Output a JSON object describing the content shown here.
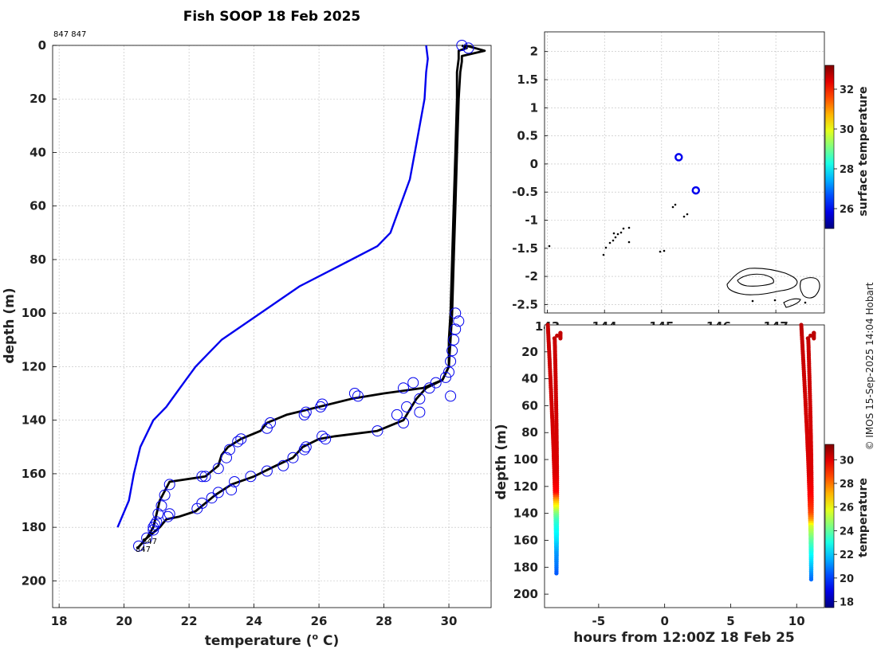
{
  "chart_data": [
    {
      "type": "line",
      "title": "Fish SOOP 18 Feb 2025",
      "corner_label": "847 847",
      "xlabel": "temperature (",
      "xlabel_sup": "o",
      "xlabel_unit": " C)",
      "ylabel": "depth (m)",
      "xlim": [
        17.8,
        31.3
      ],
      "ylim": [
        0,
        210
      ],
      "y_reversed": true,
      "grid": true,
      "x_ticks": [
        18,
        20,
        22,
        24,
        26,
        28,
        30
      ],
      "y_ticks": [
        0,
        20,
        40,
        60,
        80,
        100,
        120,
        140,
        160,
        180,
        200
      ],
      "colors": {
        "climatology": "#0000ee",
        "profiles": "#000000",
        "markers": "#0000ee"
      },
      "series": [
        {
          "style": "blue-line",
          "points": [
            [
              29.3,
              0
            ],
            [
              29.35,
              5
            ],
            [
              29.3,
              10
            ],
            [
              29.25,
              20
            ],
            [
              29.1,
              30
            ],
            [
              28.95,
              40
            ],
            [
              28.8,
              50
            ],
            [
              28.5,
              60
            ],
            [
              28.2,
              70
            ],
            [
              27.8,
              75
            ],
            [
              27.0,
              80
            ],
            [
              26.2,
              85
            ],
            [
              25.4,
              90
            ],
            [
              24.8,
              95
            ],
            [
              24.2,
              100
            ],
            [
              23.6,
              105
            ],
            [
              23.0,
              110
            ],
            [
              22.6,
              115
            ],
            [
              22.2,
              120
            ],
            [
              21.9,
              125
            ],
            [
              21.6,
              130
            ],
            [
              21.3,
              135
            ],
            [
              20.9,
              140
            ],
            [
              20.5,
              150
            ],
            [
              20.3,
              160
            ],
            [
              20.15,
              170
            ],
            [
              19.8,
              180
            ]
          ]
        },
        {
          "style": "black-line",
          "label": "847",
          "points": [
            [
              30.4,
              0
            ],
            [
              30.55,
              1
            ],
            [
              30.3,
              2
            ],
            [
              30.3,
              5
            ],
            [
              30.25,
              10
            ],
            [
              30.25,
              20
            ],
            [
              30.2,
              40
            ],
            [
              30.15,
              60
            ],
            [
              30.1,
              80
            ],
            [
              30.05,
              100
            ],
            [
              30.0,
              110
            ],
            [
              30.0,
              120
            ],
            [
              29.8,
              125
            ],
            [
              29.2,
              128
            ],
            [
              28.0,
              130
            ],
            [
              27.0,
              132
            ],
            [
              26.0,
              135
            ],
            [
              25.0,
              138
            ],
            [
              24.4,
              141
            ],
            [
              24.2,
              144
            ],
            [
              23.6,
              147
            ],
            [
              23.2,
              150
            ],
            [
              23.0,
              153
            ],
            [
              22.9,
              157
            ],
            [
              22.5,
              161
            ],
            [
              21.4,
              163
            ],
            [
              21.1,
              170
            ],
            [
              21.0,
              175
            ],
            [
              20.9,
              180
            ],
            [
              20.7,
              184
            ],
            [
              20.4,
              188
            ]
          ]
        },
        {
          "style": "black-line",
          "label": "847",
          "points": [
            [
              30.5,
              0
            ],
            [
              31.1,
              2
            ],
            [
              30.4,
              4
            ],
            [
              30.4,
              6
            ],
            [
              30.35,
              10
            ],
            [
              30.3,
              20
            ],
            [
              30.25,
              40
            ],
            [
              30.2,
              60
            ],
            [
              30.15,
              80
            ],
            [
              30.1,
              100
            ],
            [
              30.05,
              110
            ],
            [
              30.0,
              120
            ],
            [
              29.8,
              125
            ],
            [
              29.3,
              128
            ],
            [
              29.0,
              132
            ],
            [
              28.8,
              136
            ],
            [
              28.6,
              140
            ],
            [
              27.8,
              144
            ],
            [
              26.5,
              146
            ],
            [
              26.0,
              147
            ],
            [
              25.5,
              150
            ],
            [
              25.2,
              154
            ],
            [
              24.5,
              158
            ],
            [
              24.0,
              161
            ],
            [
              23.3,
              164
            ],
            [
              22.8,
              168
            ],
            [
              22.5,
              171
            ],
            [
              22.2,
              174
            ],
            [
              21.7,
              176
            ],
            [
              21.3,
              177
            ],
            [
              21.1,
              180
            ],
            [
              20.9,
              182
            ],
            [
              20.6,
              185
            ]
          ]
        }
      ],
      "markers": [
        [
          30.4,
          0
        ],
        [
          30.6,
          1
        ],
        [
          30.2,
          100
        ],
        [
          30.3,
          103
        ],
        [
          30.2,
          106
        ],
        [
          30.15,
          110
        ],
        [
          30.1,
          114
        ],
        [
          30.05,
          118
        ],
        [
          30.0,
          122
        ],
        [
          29.9,
          124
        ],
        [
          28.9,
          126
        ],
        [
          28.6,
          128
        ],
        [
          29.6,
          126
        ],
        [
          29.4,
          128
        ],
        [
          29.1,
          132
        ],
        [
          28.7,
          135
        ],
        [
          28.4,
          138
        ],
        [
          27.1,
          130
        ],
        [
          27.2,
          131
        ],
        [
          26.1,
          134
        ],
        [
          26.05,
          135
        ],
        [
          25.6,
          137
        ],
        [
          25.55,
          138
        ],
        [
          24.5,
          141
        ],
        [
          24.4,
          143
        ],
        [
          23.6,
          147
        ],
        [
          23.5,
          148
        ],
        [
          23.25,
          151
        ],
        [
          23.15,
          154
        ],
        [
          22.9,
          158
        ],
        [
          22.5,
          161
        ],
        [
          22.4,
          161
        ],
        [
          21.4,
          164
        ],
        [
          21.25,
          168
        ],
        [
          21.15,
          172
        ],
        [
          21.05,
          175
        ],
        [
          20.95,
          179
        ],
        [
          20.9,
          181
        ],
        [
          20.7,
          184
        ],
        [
          20.45,
          187
        ],
        [
          30.05,
          131
        ],
        [
          29.1,
          137
        ],
        [
          28.6,
          141
        ],
        [
          27.8,
          144
        ],
        [
          26.1,
          146
        ],
        [
          26.2,
          147
        ],
        [
          25.6,
          150
        ],
        [
          25.55,
          151
        ],
        [
          25.2,
          154
        ],
        [
          24.9,
          157
        ],
        [
          24.4,
          159
        ],
        [
          23.9,
          161
        ],
        [
          23.4,
          163
        ],
        [
          23.3,
          166
        ],
        [
          22.9,
          167
        ],
        [
          22.7,
          169
        ],
        [
          22.4,
          171
        ],
        [
          22.25,
          173
        ],
        [
          21.4,
          175
        ],
        [
          21.35,
          176
        ],
        [
          21.0,
          178
        ],
        [
          20.9,
          180
        ]
      ]
    },
    {
      "type": "scatter",
      "x_ticks": [
        143,
        144,
        145,
        146,
        147
      ],
      "y_ticks": [
        2,
        1.5,
        1,
        0.5,
        0,
        -0.5,
        -1,
        -1.5,
        -2,
        -2.5
      ],
      "xlim": [
        142.95,
        147.85
      ],
      "ylim": [
        -2.65,
        2.35
      ],
      "grid": true,
      "points": [
        [
          145.3,
          0.12
        ],
        [
          145.6,
          -0.47
        ]
      ],
      "point_color": "#0000ee",
      "colorbar": {
        "label": "surface temperature",
        "range": [
          25,
          33.2
        ],
        "ticks": [
          26,
          28,
          30,
          32
        ]
      }
    },
    {
      "type": "scatter",
      "xlabel": "hours from 12:00Z 18 Feb 25",
      "ylabel": "depth (m)",
      "xlim": [
        -9.1,
        12.1
      ],
      "ylim": [
        0,
        210
      ],
      "y_reversed": true,
      "x_ticks": [
        -5,
        0,
        5,
        10
      ],
      "y_ticks": [
        20,
        40,
        60,
        80,
        100,
        120,
        140,
        160,
        180,
        200
      ],
      "colorbar": {
        "label": "temperature",
        "range": [
          17.5,
          31.3
        ],
        "ticks": [
          18,
          20,
          22,
          24,
          26,
          28,
          30
        ]
      },
      "casts": [
        {
          "x_surface": -8.7,
          "x_bottom": -8.2,
          "max_depth": 185,
          "profile": [
            [
              0,
              30.4
            ],
            [
              10,
              30.3
            ],
            [
              60,
              30.2
            ],
            [
              110,
              30.05
            ],
            [
              125,
              29.5
            ],
            [
              130,
              27.5
            ],
            [
              135,
              26
            ],
            [
              140,
              24.5
            ],
            [
              145,
              23.5
            ],
            [
              150,
              23
            ],
            [
              160,
              22.3
            ],
            [
              170,
              21.3
            ],
            [
              180,
              20.8
            ],
            [
              185,
              20.4
            ]
          ]
        },
        {
          "x_surface": 10.5,
          "x_bottom": 11.1,
          "max_depth": 190,
          "profile": [
            [
              0,
              30.5
            ],
            [
              10,
              30.35
            ],
            [
              60,
              30.2
            ],
            [
              110,
              30.05
            ],
            [
              125,
              29.6
            ],
            [
              135,
              29.0
            ],
            [
              140,
              28.6
            ],
            [
              145,
              27.5
            ],
            [
              150,
              25.5
            ],
            [
              155,
              24.8
            ],
            [
              160,
              24.0
            ],
            [
              170,
              22.8
            ],
            [
              180,
              21.8
            ],
            [
              190,
              20.6
            ]
          ]
        }
      ]
    }
  ],
  "credit": "© IMOS 15-Sep-2025 14:04 Hobart"
}
